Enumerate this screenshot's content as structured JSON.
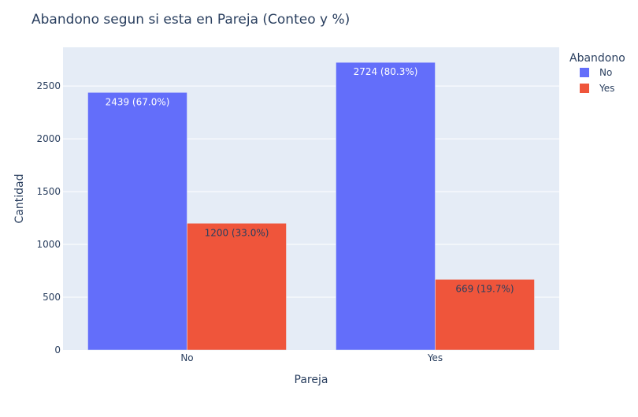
{
  "chart_data": {
    "type": "bar",
    "title": "Abandono segun si esta en Pareja (Conteo y %)",
    "xlabel": "Pareja",
    "ylabel": "Cantidad",
    "categories": [
      "No",
      "Yes"
    ],
    "ylim": [
      0,
      2867
    ],
    "yticks": [
      0,
      500,
      1000,
      1500,
      2000,
      2500
    ],
    "ytick_labels": [
      "0",
      "500",
      "1000",
      "1500",
      "2000",
      "2500"
    ],
    "grid": true,
    "legend": {
      "title": "Abandono",
      "placement": "top-right"
    },
    "series": [
      {
        "name": "No",
        "color": "#636efa",
        "values": [
          2439,
          2724
        ],
        "labels": [
          "2439 (67.0%)",
          "2724 (80.3%)"
        ]
      },
      {
        "name": "Yes",
        "color": "#ef553b",
        "values": [
          1200,
          669
        ],
        "labels": [
          "1200 (33.0%)",
          "669 (19.7%)"
        ]
      }
    ]
  }
}
